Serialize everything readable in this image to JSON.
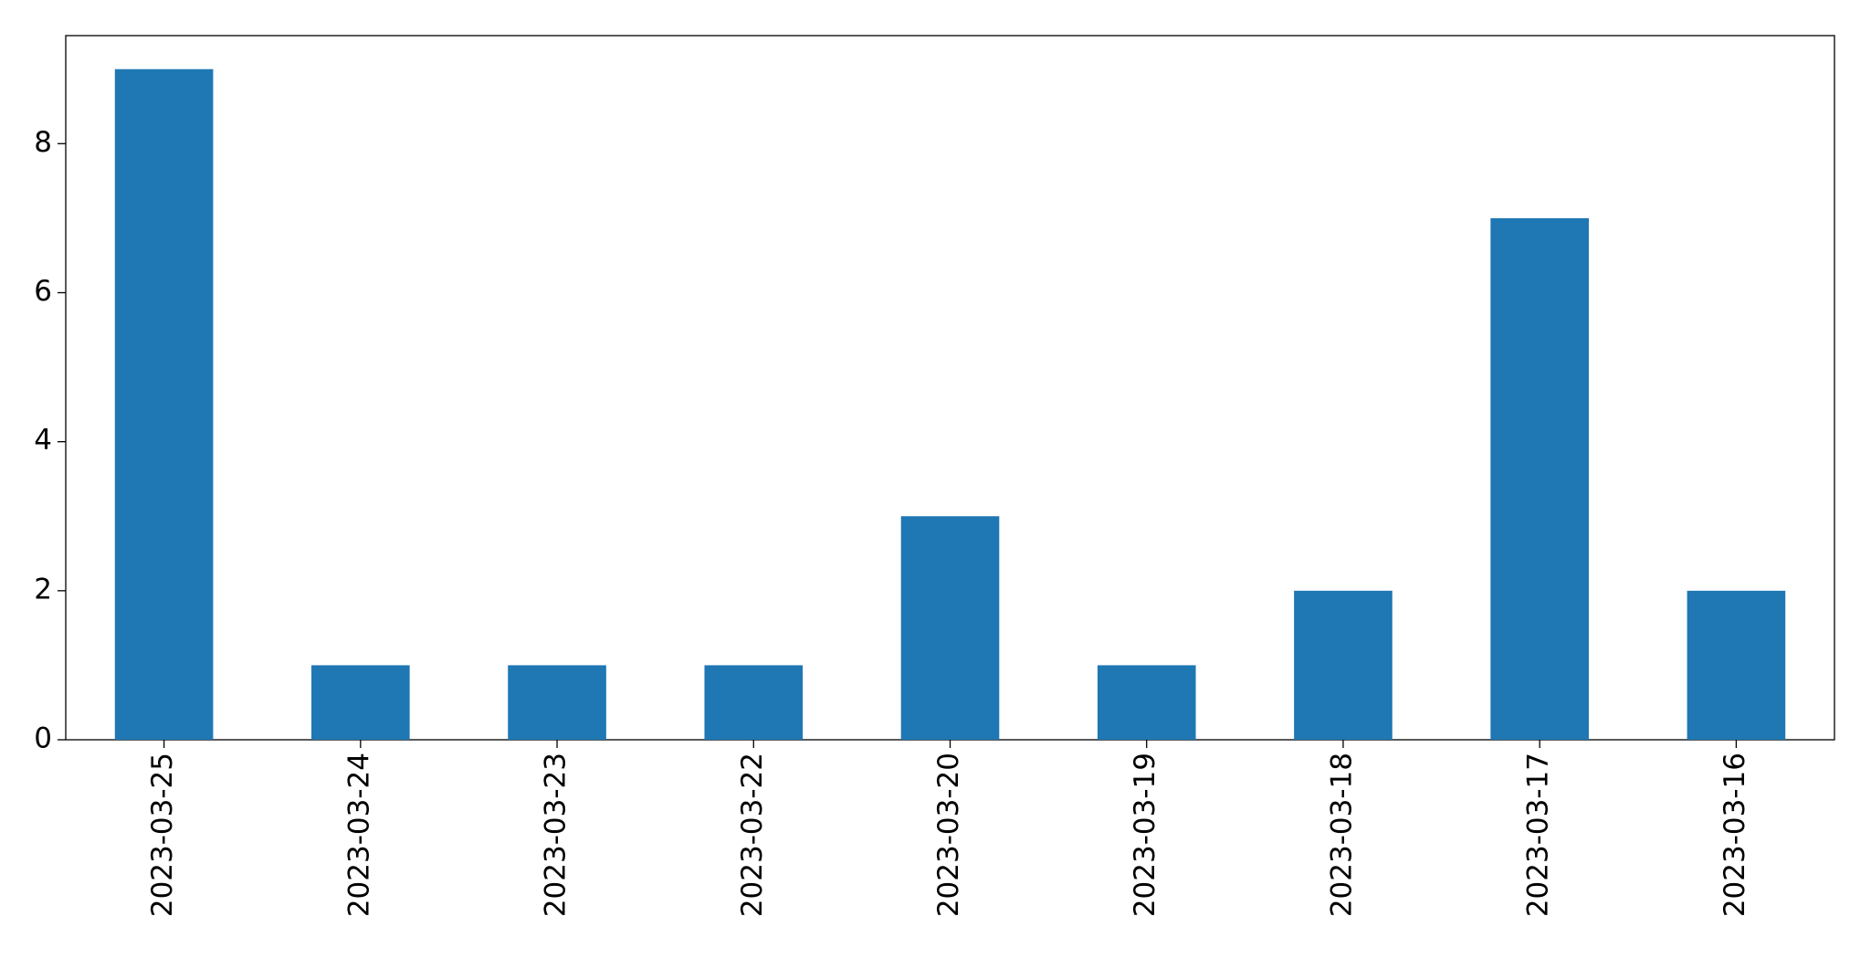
{
  "chart_data": {
    "type": "bar",
    "categories": [
      "2023-03-25",
      "2023-03-24",
      "2023-03-23",
      "2023-03-22",
      "2023-03-20",
      "2023-03-19",
      "2023-03-18",
      "2023-03-17",
      "2023-03-16"
    ],
    "values": [
      9,
      1,
      1,
      1,
      3,
      1,
      2,
      7,
      2
    ],
    "color": "#1f77b4",
    "ylim": [
      0,
      9.45
    ],
    "yticks": [
      0,
      2,
      4,
      6,
      8
    ],
    "grid": false
  }
}
